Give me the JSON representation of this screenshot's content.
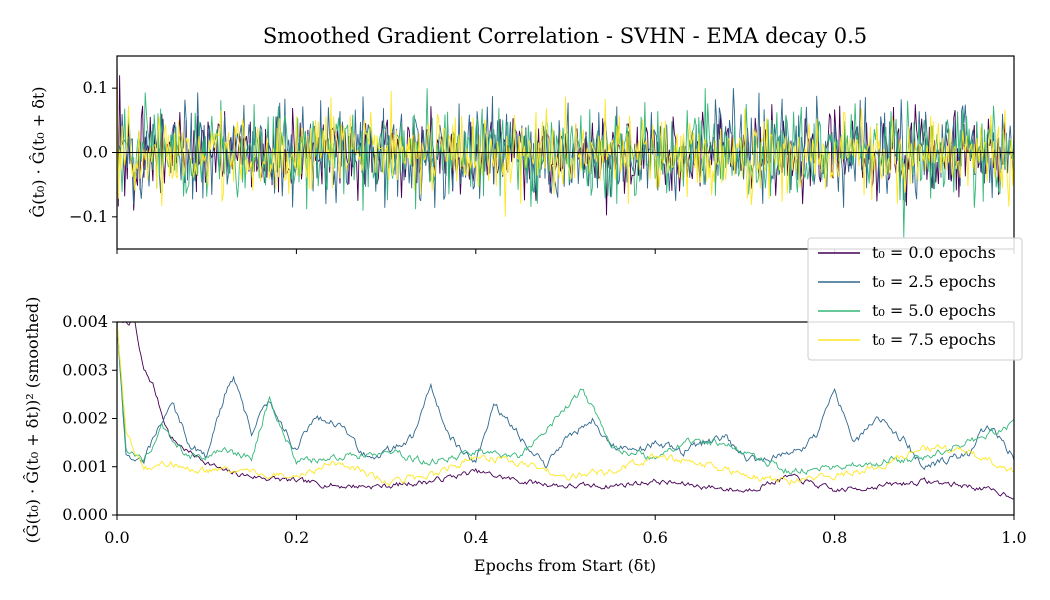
{
  "chart_data": [
    {
      "type": "line",
      "title": "Smoothed Gradient Correlation - SVHN - EMA decay 0.5",
      "ylabel": "Ĝ(t₀) · Ĝ(t₀ + δt)",
      "xlabel": "",
      "xlim": [
        0.0,
        1.0
      ],
      "ylim": [
        -0.15,
        0.15
      ],
      "yticks": [
        {
          "value": 0.1,
          "label": "0.1"
        },
        {
          "value": 0.0,
          "label": "0.0"
        },
        {
          "value": -0.1,
          "label": "−0.1"
        }
      ],
      "xticks": [
        0.0,
        0.2,
        0.4,
        0.6,
        0.8,
        1.0
      ],
      "xtick_labels_visible": false,
      "zero_line": true,
      "note": "noisy oscillation around 0; amplitude roughly ±0.05, occasional spikes to ±0.12",
      "series": [
        {
          "name": "t₀ = 0.0 epochs",
          "color": "#440154",
          "amplitude": 0.03,
          "initial": [
            0.15,
            0.14,
            0.12
          ]
        },
        {
          "name": "t₀ = 2.5 epochs",
          "color": "#31688e",
          "amplitude": 0.036,
          "initial": [
            0.12,
            0.1
          ]
        },
        {
          "name": "t₀ = 5.0 epochs",
          "color": "#35b779",
          "amplitude": 0.034,
          "initial": [
            0.1,
            0.08
          ]
        },
        {
          "name": "t₀ = 7.5 epochs",
          "color": "#fde725",
          "amplitude": 0.03,
          "initial": [
            0.15,
            0.12
          ]
        }
      ]
    },
    {
      "type": "line",
      "title": "",
      "ylabel": "(Ĝ(t₀) · Ĝ(t₀ + δt))² (smoothed)",
      "xlabel": "Epochs from Start (δt)",
      "xlim": [
        0.0,
        1.0
      ],
      "ylim": [
        0.0,
        0.004
      ],
      "yticks": [
        {
          "value": 0.004,
          "label": "0.004"
        },
        {
          "value": 0.003,
          "label": "0.003"
        },
        {
          "value": 0.002,
          "label": "0.002"
        },
        {
          "value": 0.001,
          "label": "0.001"
        },
        {
          "value": 0.0,
          "label": "0.000"
        }
      ],
      "xticks": [
        {
          "value": 0.0,
          "label": "0.0"
        },
        {
          "value": 0.2,
          "label": "0.2"
        },
        {
          "value": 0.4,
          "label": "0.4"
        },
        {
          "value": 0.6,
          "label": "0.6"
        },
        {
          "value": 0.8,
          "label": "0.8"
        },
        {
          "value": 1.0,
          "label": "1.0"
        }
      ],
      "legend_position": "top-right",
      "series": [
        {
          "name": "t₀ = 0.0 epochs",
          "color": "#440154",
          "x": [
            0.0,
            0.02,
            0.025,
            0.03,
            0.04,
            0.05,
            0.06,
            0.08,
            0.1,
            0.12,
            0.15,
            0.2,
            0.25,
            0.3,
            0.35,
            0.4,
            0.45,
            0.5,
            0.55,
            0.6,
            0.65,
            0.7,
            0.75,
            0.8,
            0.85,
            0.9,
            0.95,
            1.0
          ],
          "values": [
            0.004,
            0.004,
            0.0034,
            0.003,
            0.0027,
            0.0021,
            0.0016,
            0.0013,
            0.0011,
            0.0009,
            0.0008,
            0.0007,
            0.0006,
            0.0006,
            0.0007,
            0.0009,
            0.0007,
            0.0006,
            0.0006,
            0.0007,
            0.0006,
            0.0005,
            0.0008,
            0.0005,
            0.0006,
            0.0007,
            0.0006,
            0.0004
          ],
          "jitter": 0.00012
        },
        {
          "name": "t₀ = 2.5 epochs",
          "color": "#31688e",
          "x": [
            0.0,
            0.01,
            0.03,
            0.06,
            0.08,
            0.1,
            0.12,
            0.13,
            0.15,
            0.17,
            0.2,
            0.22,
            0.25,
            0.28,
            0.3,
            0.33,
            0.35,
            0.37,
            0.4,
            0.42,
            0.45,
            0.48,
            0.5,
            0.53,
            0.55,
            0.58,
            0.6,
            0.63,
            0.65,
            0.68,
            0.7,
            0.72,
            0.75,
            0.78,
            0.8,
            0.82,
            0.85,
            0.88,
            0.9,
            0.93,
            0.95,
            0.97,
            1.0
          ],
          "values": [
            0.004,
            0.0012,
            0.0011,
            0.0024,
            0.0015,
            0.0012,
            0.0025,
            0.0029,
            0.0017,
            0.0024,
            0.0013,
            0.0021,
            0.0018,
            0.0012,
            0.0013,
            0.0016,
            0.0027,
            0.0016,
            0.0011,
            0.0023,
            0.0016,
            0.001,
            0.0016,
            0.002,
            0.0014,
            0.0013,
            0.0015,
            0.0013,
            0.0015,
            0.0016,
            0.0012,
            0.0011,
            0.0013,
            0.0016,
            0.0026,
            0.0015,
            0.002,
            0.0015,
            0.001,
            0.0012,
            0.0013,
            0.0019,
            0.0012
          ],
          "jitter": 0.00018
        },
        {
          "name": "t₀ = 5.0 epochs",
          "color": "#35b779",
          "x": [
            0.0,
            0.01,
            0.03,
            0.05,
            0.08,
            0.1,
            0.12,
            0.15,
            0.17,
            0.2,
            0.25,
            0.3,
            0.35,
            0.4,
            0.45,
            0.5,
            0.52,
            0.55,
            0.6,
            0.65,
            0.7,
            0.75,
            0.8,
            0.85,
            0.9,
            0.95,
            1.0
          ],
          "values": [
            0.004,
            0.0014,
            0.0011,
            0.0018,
            0.0012,
            0.0012,
            0.0013,
            0.0012,
            0.0024,
            0.0011,
            0.0012,
            0.0013,
            0.0011,
            0.0013,
            0.0012,
            0.0022,
            0.0026,
            0.0014,
            0.0012,
            0.0016,
            0.0013,
            0.0009,
            0.001,
            0.0011,
            0.0012,
            0.0015,
            0.0019
          ],
          "jitter": 0.00016
        },
        {
          "name": "t₀ = 7.5 epochs",
          "color": "#fde725",
          "x": [
            0.0,
            0.01,
            0.03,
            0.05,
            0.1,
            0.15,
            0.2,
            0.25,
            0.3,
            0.35,
            0.4,
            0.45,
            0.5,
            0.55,
            0.6,
            0.65,
            0.7,
            0.75,
            0.8,
            0.85,
            0.9,
            0.95,
            1.0
          ],
          "values": [
            0.004,
            0.0017,
            0.0009,
            0.0011,
            0.0009,
            0.0009,
            0.0008,
            0.0011,
            0.0007,
            0.0008,
            0.0012,
            0.0011,
            0.0008,
            0.0009,
            0.0012,
            0.0011,
            0.0008,
            0.0007,
            0.0008,
            0.001,
            0.0014,
            0.0013,
            0.0009
          ],
          "jitter": 0.00015
        }
      ]
    }
  ]
}
